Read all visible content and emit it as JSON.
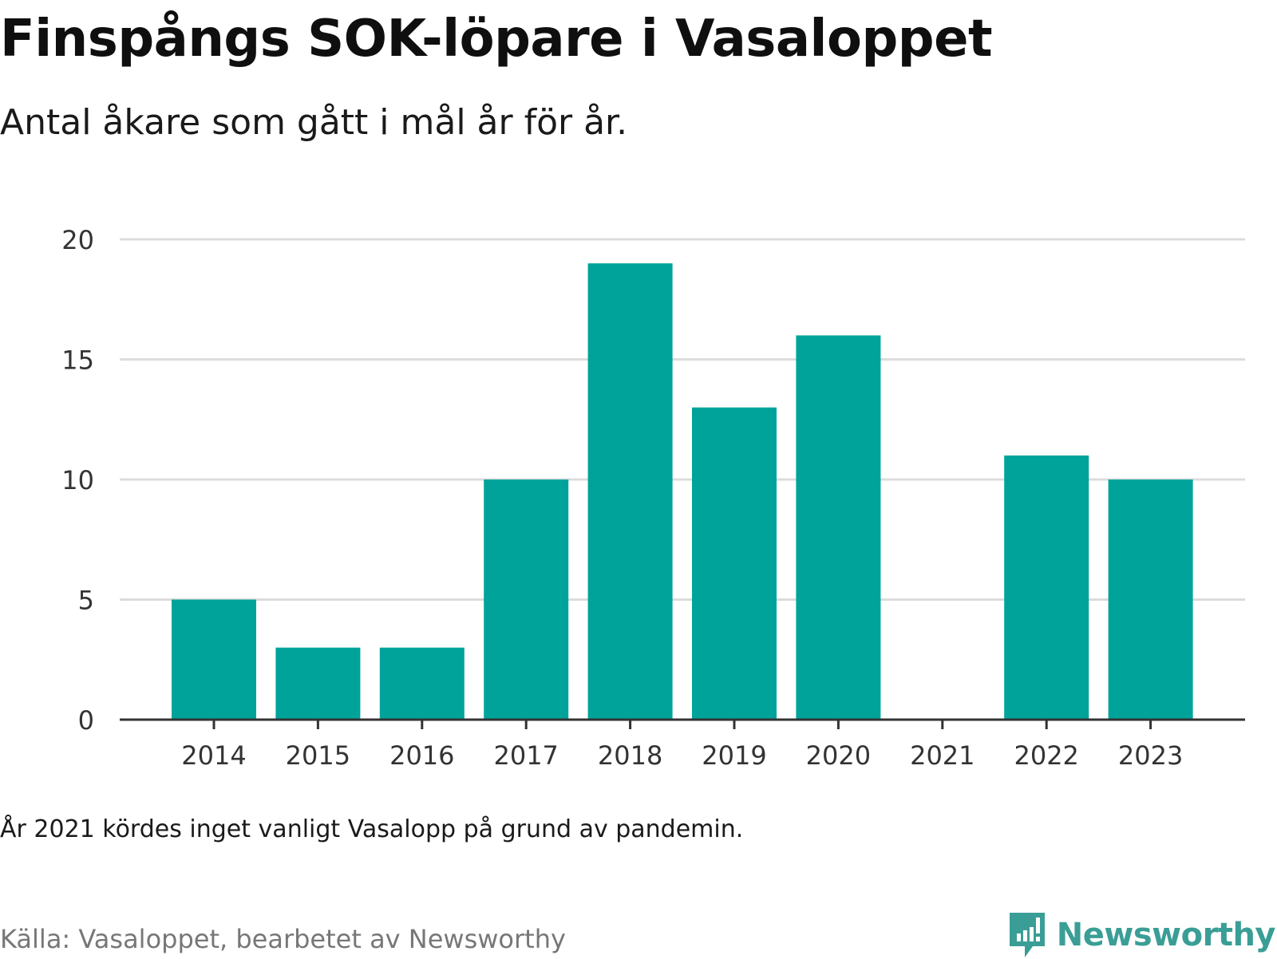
{
  "header": {
    "title": "Finspångs SOK-löpare i Vasaloppet",
    "subtitle": "Antal åkare som gått i mål år för år."
  },
  "footer": {
    "note": "År 2021 kördes inget vanligt Vasalopp på grund av pandemin.",
    "source": "Källa: Vasaloppet, bearbetet av Newsworthy",
    "brand": "Newsworthy",
    "brand_icon": "newsworthy-logo-icon"
  },
  "colors": {
    "bar": "#00a39a",
    "grid": "#dcdcdc",
    "axis": "#333333",
    "brand": "#3a9e96"
  },
  "chart_data": {
    "type": "bar",
    "title": "Finspångs SOK-löpare i Vasaloppet",
    "subtitle": "Antal åkare som gått i mål år för år.",
    "xlabel": "",
    "ylabel": "",
    "categories": [
      "2014",
      "2015",
      "2016",
      "2017",
      "2018",
      "2019",
      "2020",
      "2021",
      "2022",
      "2023"
    ],
    "values": [
      5,
      3,
      3,
      10,
      19,
      13,
      16,
      0,
      11,
      10
    ],
    "ylim": [
      0,
      20
    ],
    "yticks": [
      0,
      5,
      10,
      15,
      20
    ],
    "grid": true,
    "legend": "none"
  }
}
